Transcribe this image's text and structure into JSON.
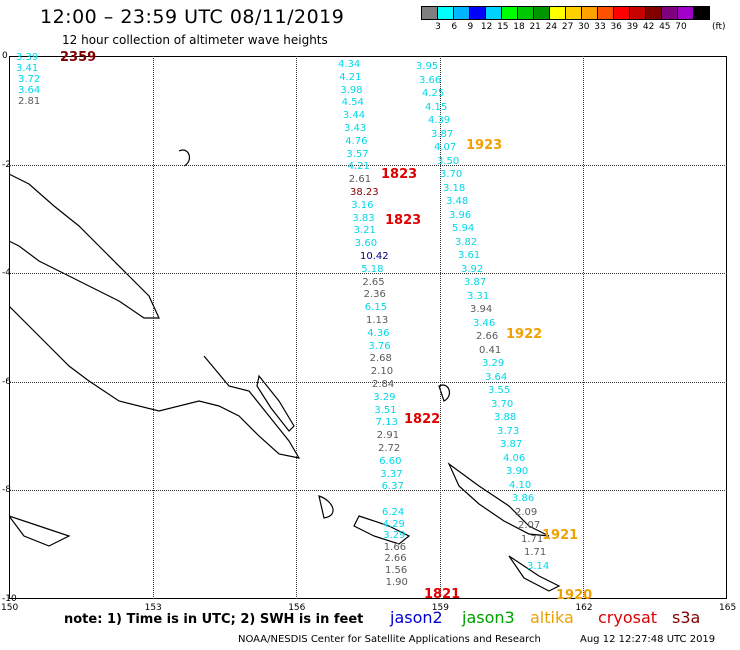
{
  "header": {
    "title": "12:00 – 23:59 UTC 08/11/2019",
    "subtitle": "12 hour collection of altimeter wave heights"
  },
  "colorbar": {
    "colors": [
      "#7f7f7f",
      "#00ffff",
      "#00b4ff",
      "#0000ff",
      "#00d2ff",
      "#00ff00",
      "#00c800",
      "#009600",
      "#ffff00",
      "#ffd000",
      "#ffa000",
      "#ff5000",
      "#ff0000",
      "#c80000",
      "#800000",
      "#800080",
      "#a000c8",
      "#000000"
    ],
    "labels": [
      "3",
      "6",
      "9",
      "12",
      "15",
      "18",
      "21",
      "24",
      "27",
      "30",
      "33",
      "36",
      "39",
      "42",
      "45",
      "70"
    ],
    "unit": "(ft)"
  },
  "axes": {
    "y_labels": [
      "0",
      "-2",
      "-4",
      "-6",
      "-8",
      "-10"
    ],
    "x_labels": [
      "150",
      "153",
      "156",
      "159",
      "162",
      "165"
    ]
  },
  "colors": {
    "cyan": "#00d8e8",
    "gray": "#5a5a5a",
    "red": "#e00000",
    "orange": "#f0a000",
    "darkred": "#800000",
    "blue": "#0000d0",
    "green": "#00a000",
    "dkblue": "#000080"
  },
  "track_values": [
    {
      "v": "3.39",
      "c": "cyan"
    },
    {
      "v": "3.41",
      "c": "cyan"
    },
    {
      "v": "3.72",
      "c": "cyan"
    },
    {
      "v": "3.64",
      "c": "cyan"
    },
    {
      "v": "2.81",
      "c": "gray"
    },
    {
      "v": "4.34",
      "c": "cyan"
    },
    {
      "v": "4.21",
      "c": "cyan"
    },
    {
      "v": "3.98",
      "c": "cyan"
    },
    {
      "v": "4.54",
      "c": "cyan"
    },
    {
      "v": "3.44",
      "c": "cyan"
    },
    {
      "v": "3.43",
      "c": "cyan"
    },
    {
      "v": "4.76",
      "c": "cyan"
    },
    {
      "v": "3.57",
      "c": "cyan"
    },
    {
      "v": "4.21",
      "c": "cyan"
    },
    {
      "v": "2.61",
      "c": "gray"
    },
    {
      "v": "38.23",
      "c": "darkred"
    },
    {
      "v": "3.16",
      "c": "cyan"
    },
    {
      "v": "3.83",
      "c": "cyan"
    },
    {
      "v": "3.21",
      "c": "cyan"
    },
    {
      "v": "3.60",
      "c": "cyan"
    },
    {
      "v": "10.42",
      "c": "dkblue"
    },
    {
      "v": "5.18",
      "c": "cyan"
    },
    {
      "v": "2.65",
      "c": "gray"
    },
    {
      "v": "2.36",
      "c": "gray"
    },
    {
      "v": "6.15",
      "c": "cyan"
    },
    {
      "v": "1.13",
      "c": "gray"
    },
    {
      "v": "4.36",
      "c": "cyan"
    },
    {
      "v": "3.76",
      "c": "cyan"
    },
    {
      "v": "2.68",
      "c": "gray"
    },
    {
      "v": "2.10",
      "c": "gray"
    },
    {
      "v": "2.84",
      "c": "gray"
    },
    {
      "v": "3.29",
      "c": "cyan"
    },
    {
      "v": "3.51",
      "c": "cyan"
    },
    {
      "v": "7.13",
      "c": "cyan"
    },
    {
      "v": "2.91",
      "c": "gray"
    },
    {
      "v": "2.72",
      "c": "gray"
    },
    {
      "v": "6.60",
      "c": "cyan"
    },
    {
      "v": "3.37",
      "c": "cyan"
    },
    {
      "v": "6.37",
      "c": "cyan"
    },
    {
      "v": "6.24",
      "c": "cyan"
    },
    {
      "v": "4.29",
      "c": "cyan"
    },
    {
      "v": "3.29",
      "c": "cyan"
    },
    {
      "v": "1.66",
      "c": "gray"
    },
    {
      "v": "2.66",
      "c": "gray"
    },
    {
      "v": "1.56",
      "c": "gray"
    },
    {
      "v": "1.90",
      "c": "gray"
    },
    {
      "v": "3.95",
      "c": "cyan"
    },
    {
      "v": "3.66",
      "c": "cyan"
    },
    {
      "v": "4.25",
      "c": "cyan"
    },
    {
      "v": "4.15",
      "c": "cyan"
    },
    {
      "v": "4.39",
      "c": "cyan"
    },
    {
      "v": "3.87",
      "c": "cyan"
    },
    {
      "v": "4.07",
      "c": "cyan"
    },
    {
      "v": "3.50",
      "c": "cyan"
    },
    {
      "v": "3.70",
      "c": "cyan"
    },
    {
      "v": "3.18",
      "c": "cyan"
    },
    {
      "v": "3.48",
      "c": "cyan"
    },
    {
      "v": "3.96",
      "c": "cyan"
    },
    {
      "v": "5.94",
      "c": "cyan"
    },
    {
      "v": "3.82",
      "c": "cyan"
    },
    {
      "v": "3.61",
      "c": "cyan"
    },
    {
      "v": "3.92",
      "c": "cyan"
    },
    {
      "v": "3.87",
      "c": "cyan"
    },
    {
      "v": "3.31",
      "c": "cyan"
    },
    {
      "v": "3.94",
      "c": "gray"
    },
    {
      "v": "3.46",
      "c": "cyan"
    },
    {
      "v": "2.66",
      "c": "gray"
    },
    {
      "v": "0.41",
      "c": "gray"
    },
    {
      "v": "3.29",
      "c": "cyan"
    },
    {
      "v": "3.64",
      "c": "cyan"
    },
    {
      "v": "3.55",
      "c": "cyan"
    },
    {
      "v": "3.70",
      "c": "cyan"
    },
    {
      "v": "3.88",
      "c": "cyan"
    },
    {
      "v": "3.73",
      "c": "cyan"
    },
    {
      "v": "3.87",
      "c": "cyan"
    },
    {
      "v": "4.06",
      "c": "cyan"
    },
    {
      "v": "3.90",
      "c": "cyan"
    },
    {
      "v": "4.10",
      "c": "cyan"
    },
    {
      "v": "3.86",
      "c": "cyan"
    },
    {
      "v": "2.09",
      "c": "gray"
    },
    {
      "v": "2.07",
      "c": "gray"
    },
    {
      "v": "1.71",
      "c": "gray"
    },
    {
      "v": "1.71",
      "c": "gray"
    },
    {
      "v": "3.14",
      "c": "cyan"
    }
  ],
  "time_labels": [
    {
      "t": "2359",
      "c": "darkred"
    },
    {
      "t": "1823",
      "c": "red"
    },
    {
      "t": "1823",
      "c": "red"
    },
    {
      "t": "1822",
      "c": "red"
    },
    {
      "t": "1821",
      "c": "red"
    },
    {
      "t": "1923",
      "c": "orange"
    },
    {
      "t": "1922",
      "c": "orange"
    },
    {
      "t": "1921",
      "c": "orange"
    },
    {
      "t": "1920",
      "c": "orange"
    }
  ],
  "footer": {
    "note": "note: 1) Time is in UTC; 2) SWH is in feet",
    "satellites": [
      {
        "name": "jason2",
        "color": "#0000d0"
      },
      {
        "name": "jason3",
        "color": "#00a000"
      },
      {
        "name": "altika",
        "color": "#f0a000"
      },
      {
        "name": "cryosat",
        "color": "#e00000"
      },
      {
        "name": "s3a",
        "color": "#800000"
      }
    ],
    "credit": "NOAA/NESDIS Center for Satellite Applications and Research",
    "timestamp": "Aug 12 12:27:48 UTC 2019"
  }
}
